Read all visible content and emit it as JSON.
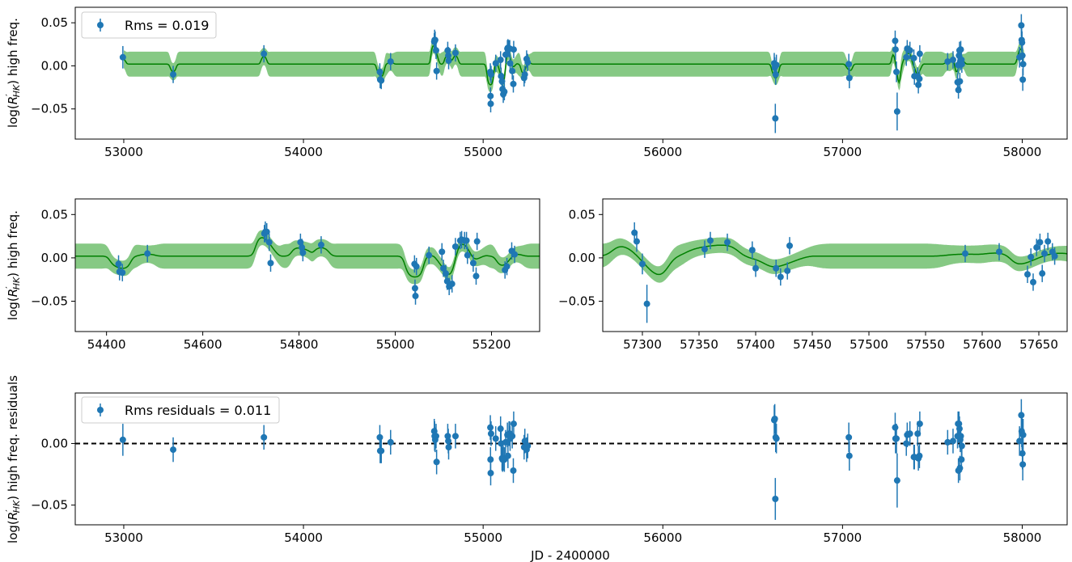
{
  "chart_data": [
    {
      "type": "scatter",
      "panel": "top",
      "ylabel_tex": [
        "log(",
        "R",
        "′",
        "HK",
        ") high freq."
      ],
      "xlabel": "",
      "xlim": [
        52730,
        58250
      ],
      "ylim": [
        -0.085,
        0.068
      ],
      "xticks": [
        53000,
        54000,
        55000,
        56000,
        57000,
        58000
      ],
      "yticks": [
        0.05,
        0.0,
        -0.05
      ],
      "ytick_labels": [
        "0.05",
        "0.00",
        "−0.05"
      ],
      "legend": {
        "label": "Rms = 0.019",
        "placement": "top-left"
      },
      "series": [
        {
          "name": "Rms = 0.019",
          "kind": "errorbar",
          "color": "#1f77b4"
        },
        {
          "kind": "gp-mean",
          "color": "#008000"
        },
        {
          "kind": "gp-band",
          "color": "#4daf4a"
        }
      ]
    },
    {
      "type": "scatter",
      "panel": "middle-left",
      "xlim": [
        54335,
        55300
      ],
      "ylim": [
        -0.085,
        0.068
      ],
      "xticks": [
        54400,
        54600,
        54800,
        55000,
        55200
      ],
      "yticks": [
        0.05,
        0.0,
        -0.05
      ],
      "ytick_labels": [
        "0.05",
        "0.00",
        "−0.05"
      ]
    },
    {
      "type": "scatter",
      "panel": "middle-right",
      "xlim": [
        57265,
        57675
      ],
      "ylim": [
        -0.085,
        0.068
      ],
      "xticks": [
        57300,
        57350,
        57400,
        57450,
        57500,
        57550,
        57600,
        57650
      ],
      "yticks": [
        0.05,
        0.0,
        -0.05
      ],
      "ytick_labels": [
        "0.05",
        "0.00",
        "−0.05"
      ]
    },
    {
      "type": "scatter",
      "panel": "bottom",
      "ylabel_tex": [
        "log(",
        "R",
        "′",
        "HK",
        ") high freq. residuals"
      ],
      "xlabel": "JD - 2400000",
      "xlim": [
        52730,
        58250
      ],
      "ylim": [
        -0.066,
        0.041
      ],
      "xticks": [
        53000,
        54000,
        55000,
        56000,
        57000,
        58000
      ],
      "yticks": [
        0.0,
        -0.05
      ],
      "ytick_labels": [
        "0.00",
        "−0.05"
      ],
      "legend": {
        "label": "Rms residuals = 0.011",
        "placement": "top-left"
      },
      "reference_line": {
        "y": 0,
        "style": "dashed",
        "color": "#000000"
      }
    }
  ],
  "data_points": [
    [
      52995,
      0.01,
      0.013,
      0.003
    ],
    [
      53275,
      -0.01,
      0.01,
      -0.005
    ],
    [
      53780,
      0.014,
      0.01,
      0.005
    ],
    [
      54425,
      -0.007,
      0.01,
      0.005
    ],
    [
      54427,
      -0.016,
      0.01,
      -0.006
    ],
    [
      54433,
      -0.017,
      0.01,
      -0.006
    ],
    [
      54485,
      0.005,
      0.01,
      0.001
    ],
    [
      54728,
      0.028,
      0.01,
      0.01
    ],
    [
      54730,
      0.03,
      0.012,
      0.006
    ],
    [
      54733,
      0.03,
      0.01,
      0.003
    ],
    [
      54738,
      0.018,
      0.01,
      0.006
    ],
    [
      54741,
      -0.006,
      0.01,
      -0.015
    ],
    [
      54803,
      0.018,
      0.01,
      0.006
    ],
    [
      54806,
      0.012,
      0.01,
      0.002
    ],
    [
      54808,
      0.006,
      0.01,
      -0.003
    ],
    [
      54846,
      0.015,
      0.01,
      0.006
    ],
    [
      55040,
      -0.007,
      0.01,
      0.013
    ],
    [
      55041,
      -0.035,
      0.01,
      -0.013
    ],
    [
      55042,
      -0.044,
      0.01,
      -0.024
    ],
    [
      55044,
      -0.01,
      0.01,
      0.008
    ],
    [
      55070,
      0.003,
      0.01,
      0.004
    ],
    [
      55097,
      0.007,
      0.01,
      0.012
    ],
    [
      55100,
      -0.012,
      0.01,
      0.0
    ],
    [
      55105,
      -0.018,
      0.01,
      -0.012
    ],
    [
      55108,
      -0.027,
      0.01,
      -0.013
    ],
    [
      55112,
      -0.033,
      0.01,
      -0.012
    ],
    [
      55118,
      -0.03,
      0.01,
      -0.013
    ],
    [
      55125,
      0.013,
      0.01,
      0.001
    ],
    [
      55135,
      0.02,
      0.01,
      0.007
    ],
    [
      55138,
      0.021,
      0.01,
      -0.01
    ],
    [
      55144,
      0.02,
      0.01,
      0.008
    ],
    [
      55148,
      0.02,
      0.01,
      0.008
    ],
    [
      55150,
      0.003,
      0.01,
      0.004
    ],
    [
      55162,
      -0.006,
      0.01,
      0.006
    ],
    [
      55170,
      0.019,
      0.01,
      0.016
    ],
    [
      55168,
      -0.021,
      0.01,
      -0.022
    ],
    [
      55228,
      -0.014,
      0.01,
      -0.003
    ],
    [
      55232,
      -0.01,
      0.01,
      0.002
    ],
    [
      55242,
      0.008,
      0.01,
      -0.005
    ],
    [
      55248,
      0.004,
      0.01,
      -0.002
    ],
    [
      56620,
      0.003,
      0.012,
      0.019
    ],
    [
      56623,
      -0.002,
      0.012,
      0.02
    ],
    [
      56626,
      -0.061,
      0.017,
      -0.045
    ],
    [
      56628,
      -0.01,
      0.012,
      0.005
    ],
    [
      56632,
      0.001,
      0.012,
      0.004
    ],
    [
      57035,
      0.002,
      0.012,
      0.005
    ],
    [
      57038,
      -0.014,
      0.012,
      -0.01
    ],
    [
      57293,
      0.029,
      0.012,
      0.013
    ],
    [
      57295,
      0.019,
      0.012,
      0.004
    ],
    [
      57300,
      -0.007,
      0.012,
      0.004
    ],
    [
      57304,
      -0.053,
      0.022,
      -0.03
    ],
    [
      57355,
      0.01,
      0.01,
      0.0
    ],
    [
      57360,
      0.02,
      0.01,
      0.007
    ],
    [
      57375,
      0.018,
      0.01,
      0.008
    ],
    [
      57397,
      0.009,
      0.01,
      -0.011
    ],
    [
      57400,
      -0.012,
      0.01,
      -0.011
    ],
    [
      57418,
      -0.012,
      0.01,
      0.008
    ],
    [
      57422,
      -0.022,
      0.01,
      -0.012
    ],
    [
      57428,
      -0.015,
      0.01,
      -0.01
    ],
    [
      57430,
      0.014,
      0.01,
      0.016
    ],
    [
      57585,
      0.005,
      0.01,
      0.001
    ],
    [
      57615,
      0.007,
      0.01,
      0.002
    ],
    [
      57640,
      -0.019,
      0.01,
      0.006
    ],
    [
      57643,
      0.001,
      0.01,
      0.016
    ],
    [
      57645,
      -0.028,
      0.01,
      -0.022
    ],
    [
      57648,
      0.012,
      0.01,
      0.016
    ],
    [
      57651,
      0.018,
      0.01,
      0.012
    ],
    [
      57653,
      -0.018,
      0.01,
      -0.02
    ],
    [
      57655,
      0.005,
      0.01,
      0.003
    ],
    [
      57658,
      0.019,
      0.01,
      0.006
    ],
    [
      57662,
      0.007,
      0.01,
      -0.013
    ],
    [
      57664,
      0.002,
      0.01,
      -0.002
    ],
    [
      57985,
      0.01,
      0.012,
      0.002
    ],
    [
      57995,
      0.047,
      0.013,
      0.023
    ],
    [
      57997,
      0.03,
      0.013,
      0.01
    ],
    [
      57999,
      0.027,
      0.013,
      0.008
    ],
    [
      58001,
      0.012,
      0.013,
      -0.008
    ],
    [
      58003,
      -0.016,
      0.013,
      -0.017
    ],
    [
      58005,
      0.002,
      0.013,
      0.007
    ]
  ]
}
